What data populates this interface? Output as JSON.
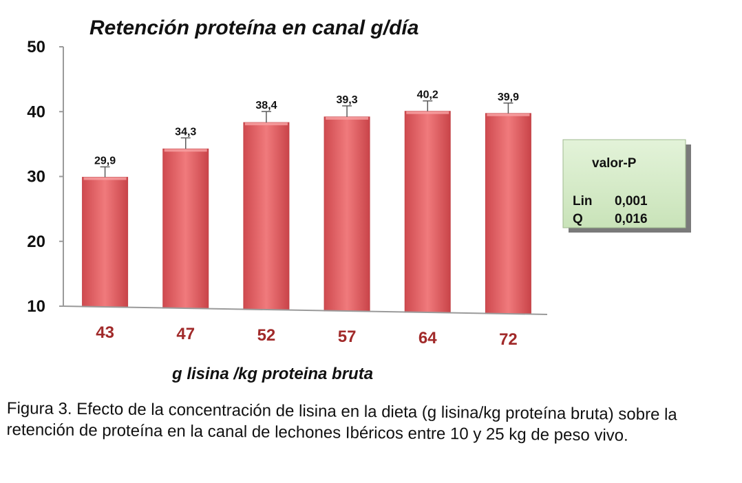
{
  "chart_data": {
    "type": "bar",
    "title": "Retención proteína en canal g/día",
    "xlabel": "g lisina /kg proteina bruta",
    "ylabel": "",
    "categories": [
      "43",
      "47",
      "52",
      "57",
      "64",
      "72"
    ],
    "values": [
      29.9,
      34.3,
      38.4,
      39.3,
      40.2,
      39.9
    ],
    "data_labels": [
      "29,9",
      "34,3",
      "38,4",
      "39,3",
      "40,2",
      "39,9"
    ],
    "error_plus": [
      1.6,
      1.7,
      1.7,
      1.7,
      1.6,
      1.6
    ],
    "ylim": [
      10,
      50
    ],
    "yticks": [
      "10",
      "20",
      "30",
      "40",
      "50"
    ],
    "ytick_values": [
      10,
      20,
      30,
      40,
      50
    ],
    "grid": false,
    "bar_color": "#e8686b",
    "category_label_color": "#a12a2a"
  },
  "pvalue_box": {
    "header": "valor-P",
    "rows": [
      {
        "label": "Lin",
        "value": "0,001"
      },
      {
        "label": "Q",
        "value": "0,016"
      }
    ],
    "background": "#d5ecc8"
  },
  "caption": "Figura 3. Efecto de la concentración de lisina en la dieta (g lisina/kg proteína bruta) sobre la retención de proteína en la canal de lechones Ibéricos entre 10 y 25 kg de peso vivo."
}
